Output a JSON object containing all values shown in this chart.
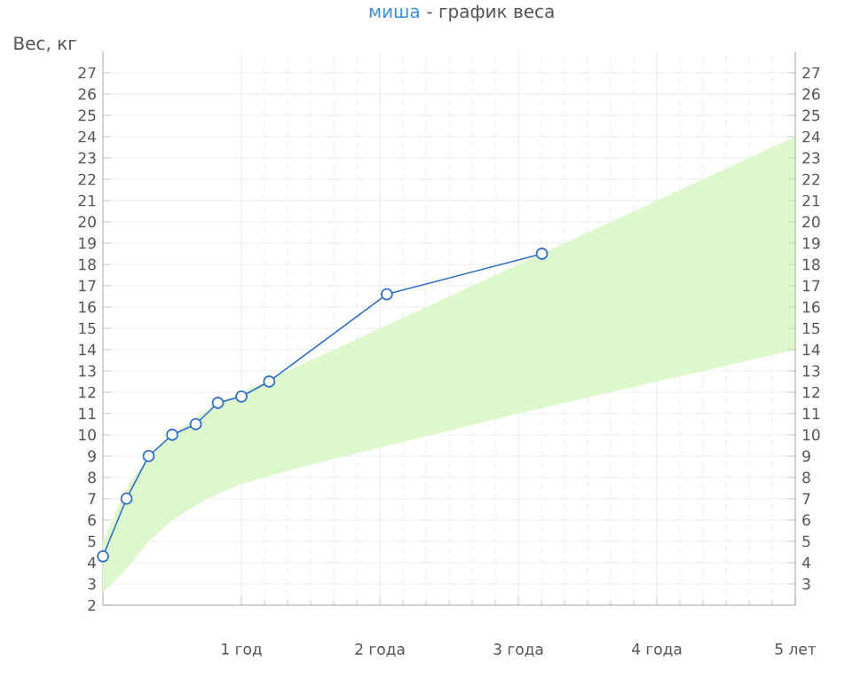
{
  "chart_data": {
    "type": "line",
    "title": "миша",
    "subtitle": "- график веса",
    "ylabel": "Вес, кг",
    "xlim": [
      0,
      5
    ],
    "xticks": [
      {
        "value": 1,
        "label": "1 год"
      },
      {
        "value": 2,
        "label": "2 года"
      },
      {
        "value": 3,
        "label": "3 года"
      },
      {
        "value": 4,
        "label": "4 года"
      },
      {
        "value": 5,
        "label": "5 лет"
      }
    ],
    "ylim": [
      2,
      28
    ],
    "yticks": [
      2,
      3,
      4,
      5,
      6,
      7,
      8,
      9,
      10,
      11,
      12,
      13,
      14,
      15,
      16,
      17,
      18,
      19,
      20,
      21,
      22,
      23,
      24,
      25,
      26,
      27
    ],
    "y2lim": [
      2,
      28
    ],
    "y2ticks": [
      3,
      4,
      5,
      6,
      7,
      8,
      9,
      10,
      11,
      12,
      13,
      14,
      15,
      16,
      17,
      18,
      19,
      20,
      21,
      22,
      23,
      24,
      25,
      26,
      27
    ],
    "grid": true,
    "marker": "circle",
    "line_style": "solid",
    "series": [
      {
        "type": "area",
        "color": "#ddf8cc",
        "x": [
          0,
          0.17,
          0.33,
          0.5,
          0.75,
          1,
          1.5,
          2,
          3,
          4,
          5
        ],
        "values": [
          null,
          null,
          null,
          null,
          null,
          null,
          null,
          null,
          null,
          null,
          null
        ],
        "lower": [
          2.6,
          3.7,
          5.0,
          6.0,
          7.0,
          7.7,
          8.6,
          9.4,
          11.0,
          12.5,
          14.0
        ],
        "upper": [
          5.0,
          7.5,
          9.0,
          10.0,
          11.2,
          12.0,
          13.5,
          15.0,
          18.0,
          21.0,
          24.0
        ]
      },
      {
        "color": "#2e6fc5",
        "x": [
          0,
          0.17,
          0.33,
          0.5,
          0.67,
          0.83,
          1,
          1.2,
          2.05,
          3.17
        ],
        "values": [
          4.3,
          7.0,
          9.0,
          10.0,
          10.5,
          11.5,
          11.8,
          12.5,
          16.6,
          18.5
        ]
      }
    ]
  }
}
